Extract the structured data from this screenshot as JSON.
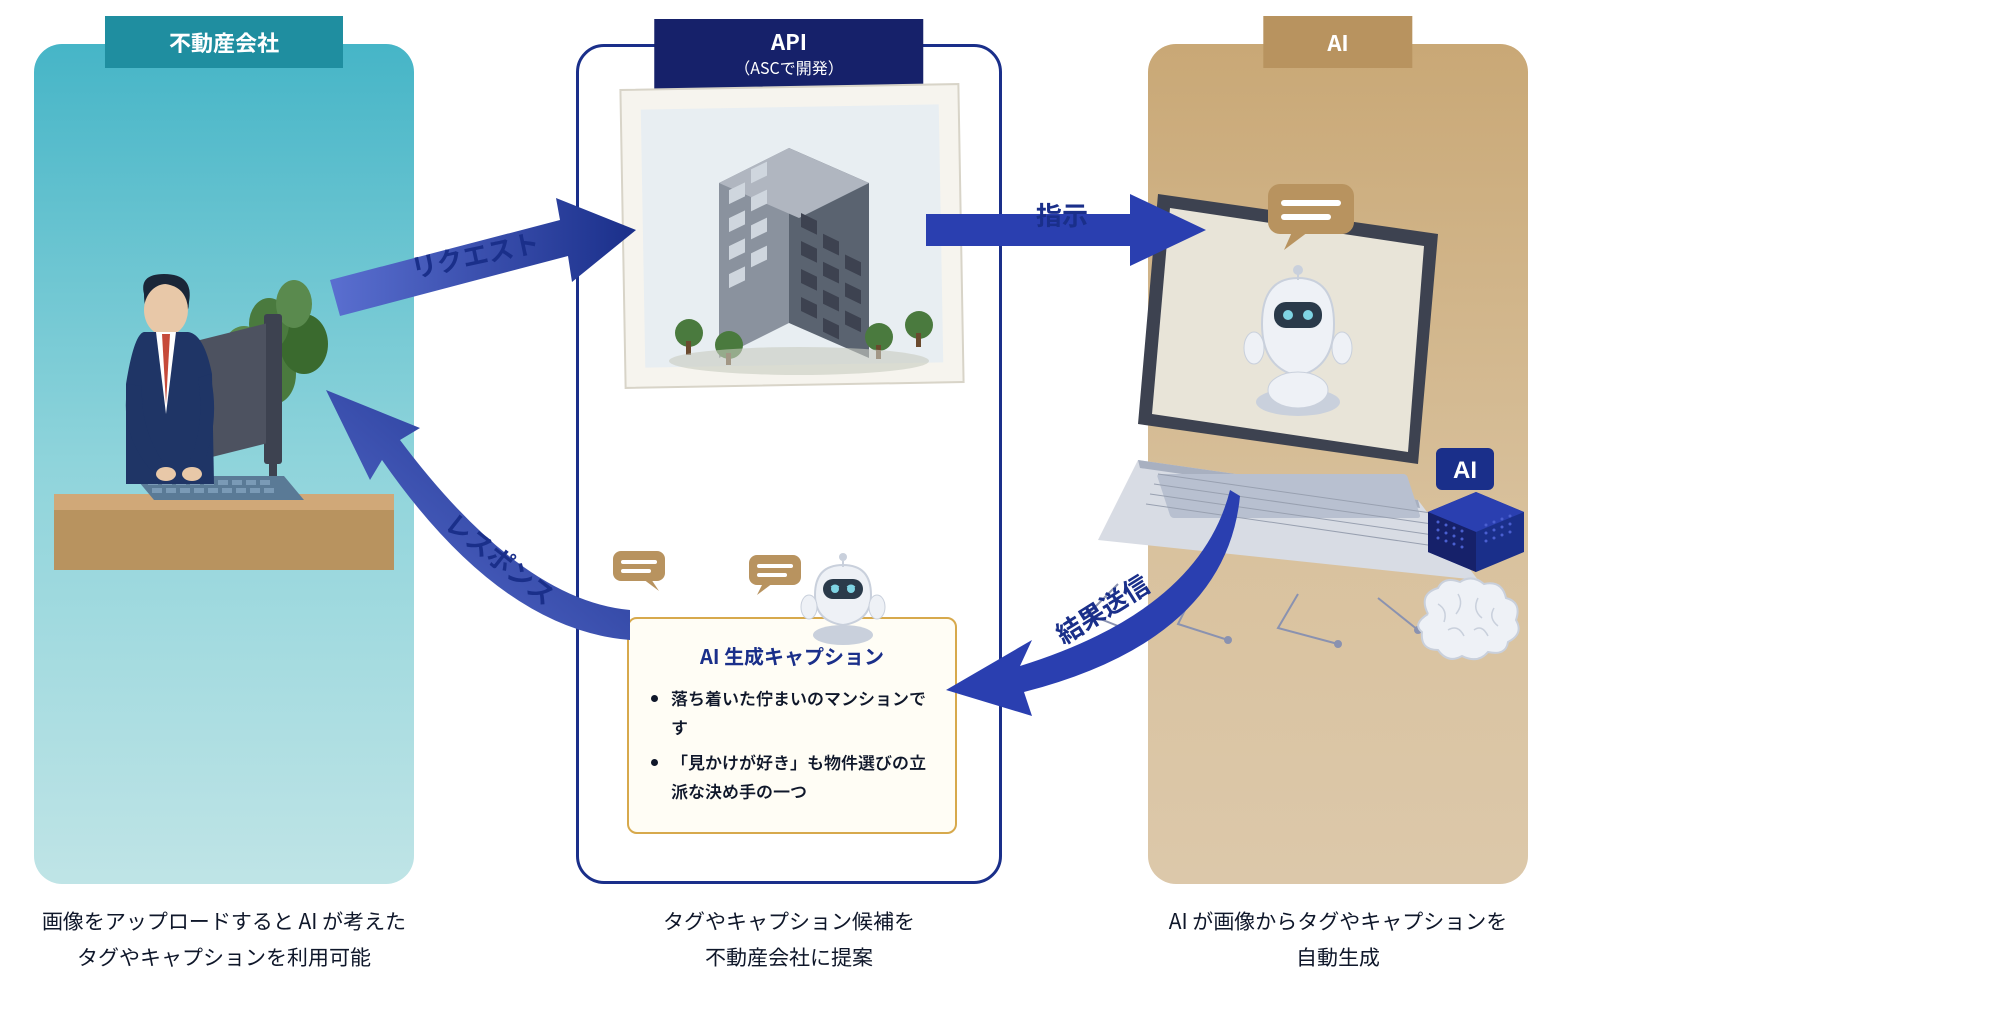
{
  "type": "flowchart",
  "background_color": "#ffffff",
  "panels": {
    "left": {
      "title": "不動産会社",
      "badge_color": "#1f8ea0",
      "gradient": [
        "#46b5c7",
        "#8fd4db",
        "#bfe4e6"
      ],
      "caption": "画像をアップロードすると AI が考えた\nタグやキャプションを利用可能"
    },
    "mid": {
      "title": "API",
      "subtitle": "（ASCで開発）",
      "badge_color": "#16216a",
      "border_color": "#1a2f8a",
      "caption": "タグやキャプション候補を\n不動産会社に提案"
    },
    "right": {
      "title": "AI",
      "badge_color": "#b8935f",
      "gradient": [
        "#c9a876",
        "#d9c29e",
        "#dcc8aa"
      ],
      "caption": "AI が画像からタグやキャプションを\n自動生成"
    }
  },
  "arrows": {
    "request": {
      "label": "リクエスト",
      "color": "#2a3fb0",
      "from": "left",
      "to": "mid",
      "direction": "right"
    },
    "instruct": {
      "label": "指示",
      "color": "#2a3fb0",
      "from": "mid",
      "to": "right",
      "direction": "right"
    },
    "result": {
      "label": "結果送信",
      "color": "#2a3fb0",
      "from": "right",
      "to": "mid",
      "direction": "left-down"
    },
    "response": {
      "label": "レスポンス",
      "color": "#2a3fb0",
      "from": "mid",
      "to": "left",
      "direction": "left-down"
    }
  },
  "caption_card": {
    "title": "AI 生成キャプション",
    "title_color": "#1a2f8a",
    "border_color": "#d7a94c",
    "bg_color": "#fffdf5",
    "items": [
      "落ち着いた佇まいのマンションです",
      "「見かけが好き」も物件選びの立派な決め手の一つ"
    ]
  },
  "ai_box_label": "AI",
  "colors": {
    "arrow": "#2a3fb0",
    "arrow_dark": "#1a2f8a",
    "label_text": "#1a2f8a",
    "building_gray": "#5a6370",
    "building_light": "#8a929e",
    "robot_body": "#eef1f6",
    "robot_shadow": "#c9d0dc",
    "speech_bubble": "#b8935f",
    "plant_green": "#4a7a3e",
    "suit_navy": "#1f3566",
    "tie_red": "#c64a3a",
    "desk": "#d0a878",
    "monitor": "#3d4250",
    "keyboard": "#5a7a96"
  },
  "fontsize": {
    "badge": 22,
    "badge_sub": 16,
    "arrow_label": 26,
    "caption": 21,
    "card_title": 20,
    "card_item": 17
  }
}
